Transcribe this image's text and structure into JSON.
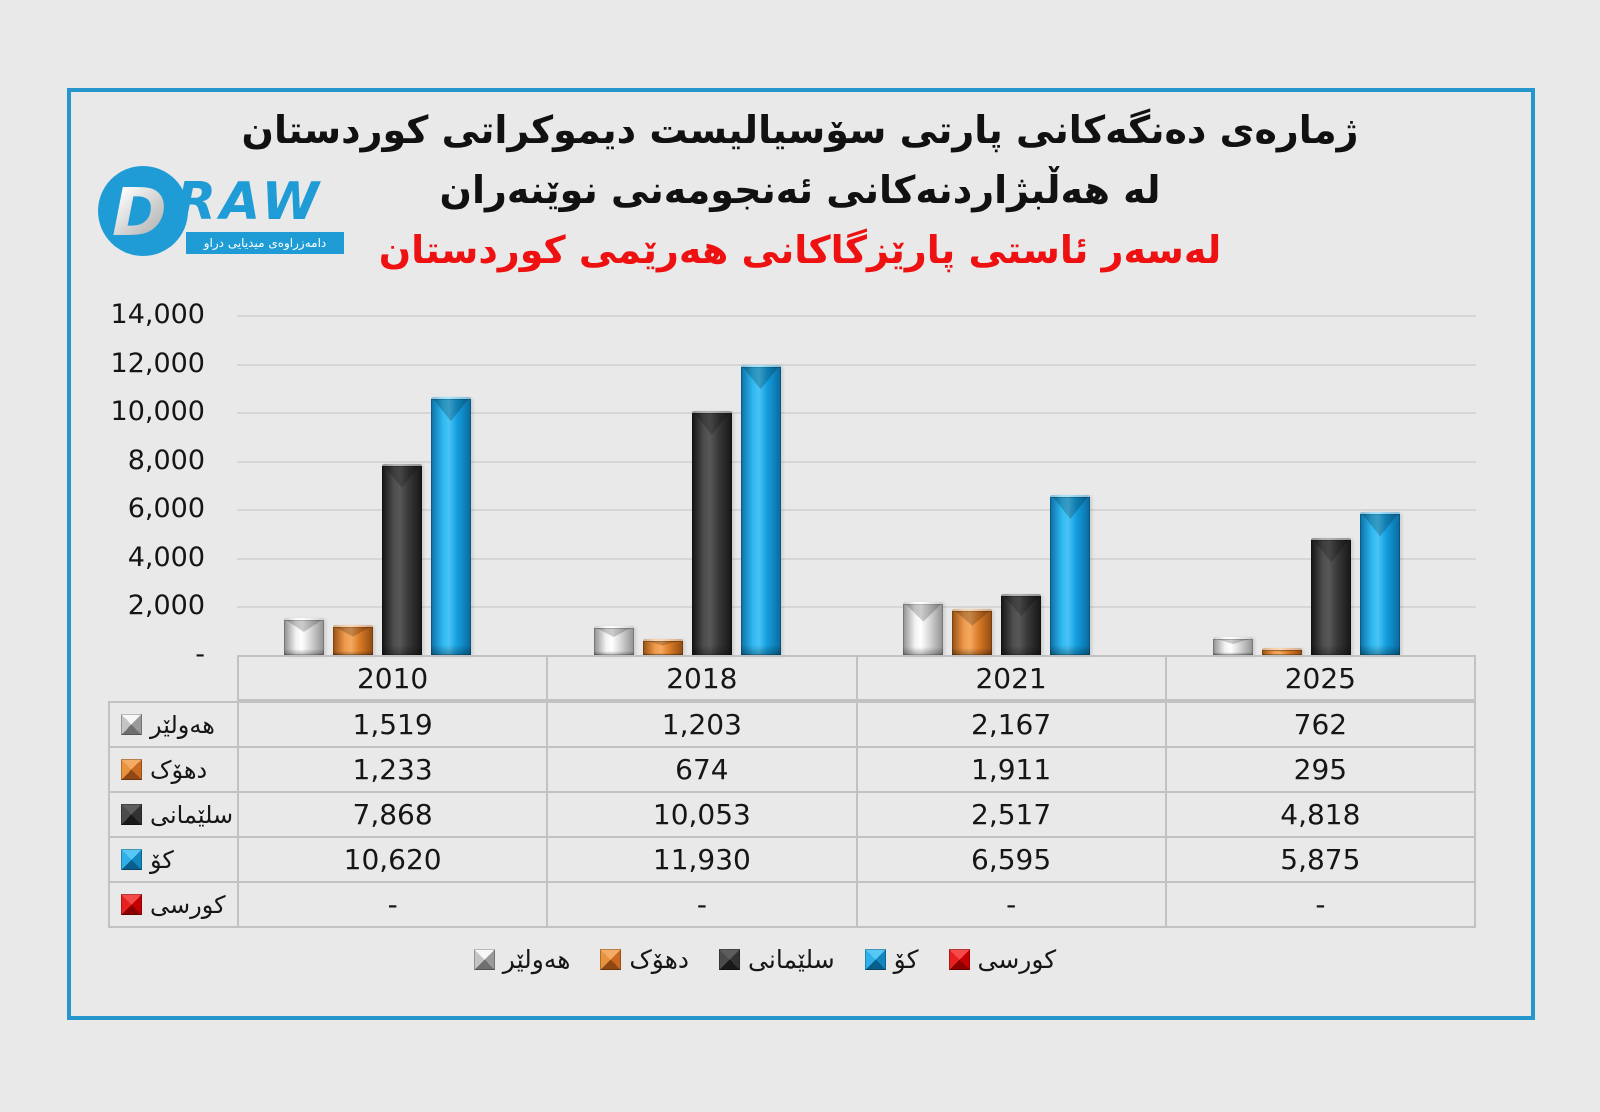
{
  "header": {
    "title_line1": "ژمارەی دەنگەکانی پارتی سۆسیالیست دیموکراتی کوردستان",
    "title_line2": "له هەڵبژاردنەکانی ئەنجومەنی نوێنەران",
    "title_line3": "لەسەر ئاستی پارێزگاکانی هەرێمی کوردستان",
    "title_red_color": "#ee1111",
    "logo": {
      "d_letter": "D",
      "word": "RAW",
      "tagline": "دامەزراوەی میدیایی دراو",
      "brand_color": "#1f9cd6"
    }
  },
  "chart_data": {
    "type": "bar",
    "title": "ژمارەی دەنگەکانی پارتی سۆسیالیست دیموکراتی کوردستان له هەڵبژاردنەکانی ئەنجومەنی نوێنەران لەسەر ئاستی پارێزگاکانی هەرێمی کوردستان",
    "categories": [
      "2010",
      "2018",
      "2021",
      "2025"
    ],
    "series": [
      {
        "name": "هەولێر",
        "color": "#c9c9c9",
        "values": [
          1519,
          1203,
          2167,
          762
        ],
        "display": [
          "1,519",
          "1,203",
          "2,167",
          "762"
        ]
      },
      {
        "name": "دهۆک",
        "color": "#e07d2c",
        "values": [
          1233,
          674,
          1911,
          295
        ],
        "display": [
          "1,233",
          "674",
          "1,911",
          "295"
        ]
      },
      {
        "name": "سلێمانی",
        "color": "#3f3f3f",
        "values": [
          7868,
          10053,
          2517,
          4818
        ],
        "display": [
          "7,868",
          "10,053",
          "2,517",
          "4,818"
        ]
      },
      {
        "name": "کۆ",
        "color": "#18a5e5",
        "values": [
          10620,
          11930,
          6595,
          5875
        ],
        "display": [
          "10,620",
          "11,930",
          "6,595",
          "5,875"
        ]
      },
      {
        "name": "کورسی",
        "color": "#d90000",
        "values": [
          0,
          0,
          0,
          0
        ],
        "display": [
          "-",
          "-",
          "-",
          "-"
        ]
      }
    ],
    "y_axis": {
      "max": 14000,
      "step": 2000,
      "tick_labels": [
        "14,000",
        "12,000",
        "10,000",
        "8,000",
        "6,000",
        "4,000",
        "2,000",
        "-"
      ]
    },
    "grid": true,
    "legend_position": "bottom",
    "data_table_shown": true
  },
  "colors": {
    "background": "#e9e9e9",
    "frame_border": "#2697cc",
    "gridline": "#d6d6d6",
    "table_border": "#c2c2c2",
    "text": "#161616"
  }
}
